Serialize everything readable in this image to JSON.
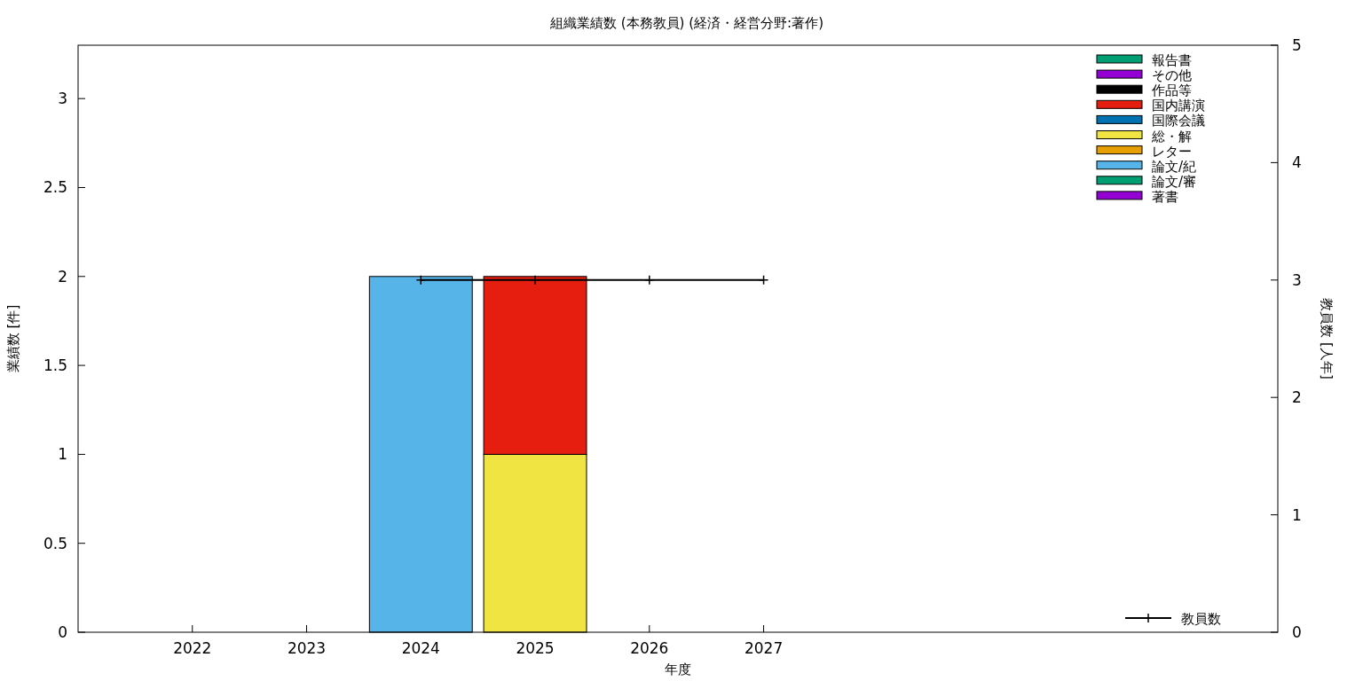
{
  "chart_data": {
    "type": "bar",
    "stacked": true,
    "title": "組織業績数 (本務教員) (経済・経営分野:著作)",
    "xlabel": "年度",
    "ylabel": "業績数 [件]",
    "y2label": "教員数 [人年]",
    "x": [
      2022,
      2023,
      2024,
      2025,
      2026,
      2027
    ],
    "xlim": [
      2021,
      2031.5
    ],
    "xticks": [
      2022,
      2023,
      2024,
      2025,
      2026,
      2027
    ],
    "ylim": [
      0,
      3.3
    ],
    "yticks": [
      0,
      0.5,
      1,
      1.5,
      2,
      2.5,
      3
    ],
    "y2lim": [
      0,
      5
    ],
    "y2ticks": [
      0,
      1,
      2,
      3,
      4,
      5
    ],
    "legend": "right",
    "grid": false,
    "series": [
      {
        "name": "著書",
        "color": "#9400d3",
        "values": [
          0,
          0,
          0,
          0,
          0,
          0
        ]
      },
      {
        "name": "論文/審",
        "color": "#009e73",
        "values": [
          0,
          0,
          0,
          0,
          0,
          0
        ]
      },
      {
        "name": "論文/紀",
        "color": "#56b4e9",
        "values": [
          0,
          0,
          2,
          0,
          0,
          0
        ]
      },
      {
        "name": "レター",
        "color": "#e69f00",
        "values": [
          0,
          0,
          0,
          0,
          0,
          0
        ]
      },
      {
        "name": "総・解",
        "color": "#f0e442",
        "values": [
          0,
          0,
          0,
          1,
          0,
          0
        ]
      },
      {
        "name": "国際会議",
        "color": "#0072b2",
        "values": [
          0,
          0,
          0,
          0,
          0,
          0
        ]
      },
      {
        "name": "国内講演",
        "color": "#e51e10",
        "values": [
          0,
          0,
          0,
          1,
          0,
          0
        ]
      },
      {
        "name": "作品等",
        "color": "#000000",
        "values": [
          0,
          0,
          0,
          0,
          0,
          0
        ]
      },
      {
        "name": "その他",
        "color": "#9400d3",
        "values": [
          0,
          0,
          0,
          0,
          0,
          0
        ]
      },
      {
        "name": "報告書",
        "color": "#009e73",
        "values": [
          0,
          0,
          0,
          0,
          0,
          0
        ]
      },
      {
        "name": "教員数",
        "type": "line",
        "axis": "y2",
        "color": "#000000",
        "marker": "cross",
        "line_style": "solid",
        "x": [
          2024,
          2025,
          2026,
          2027
        ],
        "values": [
          3,
          3,
          3,
          3
        ]
      }
    ]
  }
}
